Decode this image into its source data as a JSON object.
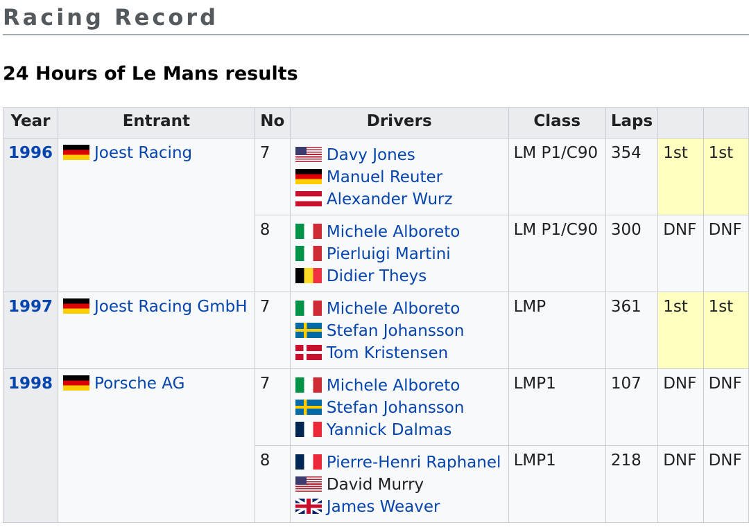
{
  "section_title": "Racing Record",
  "subsection_title": "24 Hours of Le Mans results",
  "table": {
    "headers": [
      "Year",
      "Entrant",
      "No",
      "Drivers",
      "Class",
      "Laps",
      "",
      ""
    ],
    "years": [
      {
        "year": "1996",
        "entrant": "Joest Racing",
        "entrant_flag": "germany",
        "entries": [
          {
            "no": "7",
            "class": "LM P1/C90",
            "laps": "354",
            "pos": "1st",
            "class_pos": "1st",
            "win": true,
            "drivers": [
              {
                "name": "Davy Jones",
                "flag": "usa",
                "link": true
              },
              {
                "name": "Manuel Reuter",
                "flag": "germany",
                "link": true
              },
              {
                "name": "Alexander Wurz",
                "flag": "austria",
                "link": true
              }
            ]
          },
          {
            "no": "8",
            "class": "LM P1/C90",
            "laps": "300",
            "pos": "DNF",
            "class_pos": "DNF",
            "win": false,
            "drivers": [
              {
                "name": "Michele Alboreto",
                "flag": "italy",
                "link": true
              },
              {
                "name": "Pierluigi Martini",
                "flag": "italy",
                "link": true
              },
              {
                "name": "Didier Theys",
                "flag": "belgium",
                "link": true
              }
            ]
          }
        ]
      },
      {
        "year": "1997",
        "entrant": "Joest Racing GmbH",
        "entrant_flag": "germany",
        "entries": [
          {
            "no": "7",
            "class": "LMP",
            "laps": "361",
            "pos": "1st",
            "class_pos": "1st",
            "win": true,
            "drivers": [
              {
                "name": "Michele Alboreto",
                "flag": "italy",
                "link": true
              },
              {
                "name": "Stefan Johansson",
                "flag": "sweden",
                "link": true
              },
              {
                "name": "Tom Kristensen",
                "flag": "denmark",
                "link": true
              }
            ]
          }
        ]
      },
      {
        "year": "1998",
        "entrant": "Porsche AG",
        "entrant_flag": "germany",
        "entries": [
          {
            "no": "7",
            "class": "LMP1",
            "laps": "107",
            "pos": "DNF",
            "class_pos": "DNF",
            "win": false,
            "drivers": [
              {
                "name": "Michele Alboreto",
                "flag": "italy",
                "link": true
              },
              {
                "name": "Stefan Johansson",
                "flag": "sweden",
                "link": true
              },
              {
                "name": "Yannick Dalmas",
                "flag": "france",
                "link": true
              }
            ]
          },
          {
            "no": "8",
            "class": "LMP1",
            "laps": "218",
            "pos": "DNF",
            "class_pos": "DNF",
            "win": false,
            "drivers": [
              {
                "name": "Pierre-Henri Raphanel",
                "flag": "france",
                "link": true
              },
              {
                "name": "David Murry",
                "flag": "usa",
                "link": false
              },
              {
                "name": "James Weaver",
                "flag": "uk",
                "link": true
              }
            ]
          }
        ]
      }
    ]
  },
  "colors": {
    "link": "#0645ad",
    "win_highlight": "#ffffbf",
    "header_bg": "#eaecf0"
  }
}
